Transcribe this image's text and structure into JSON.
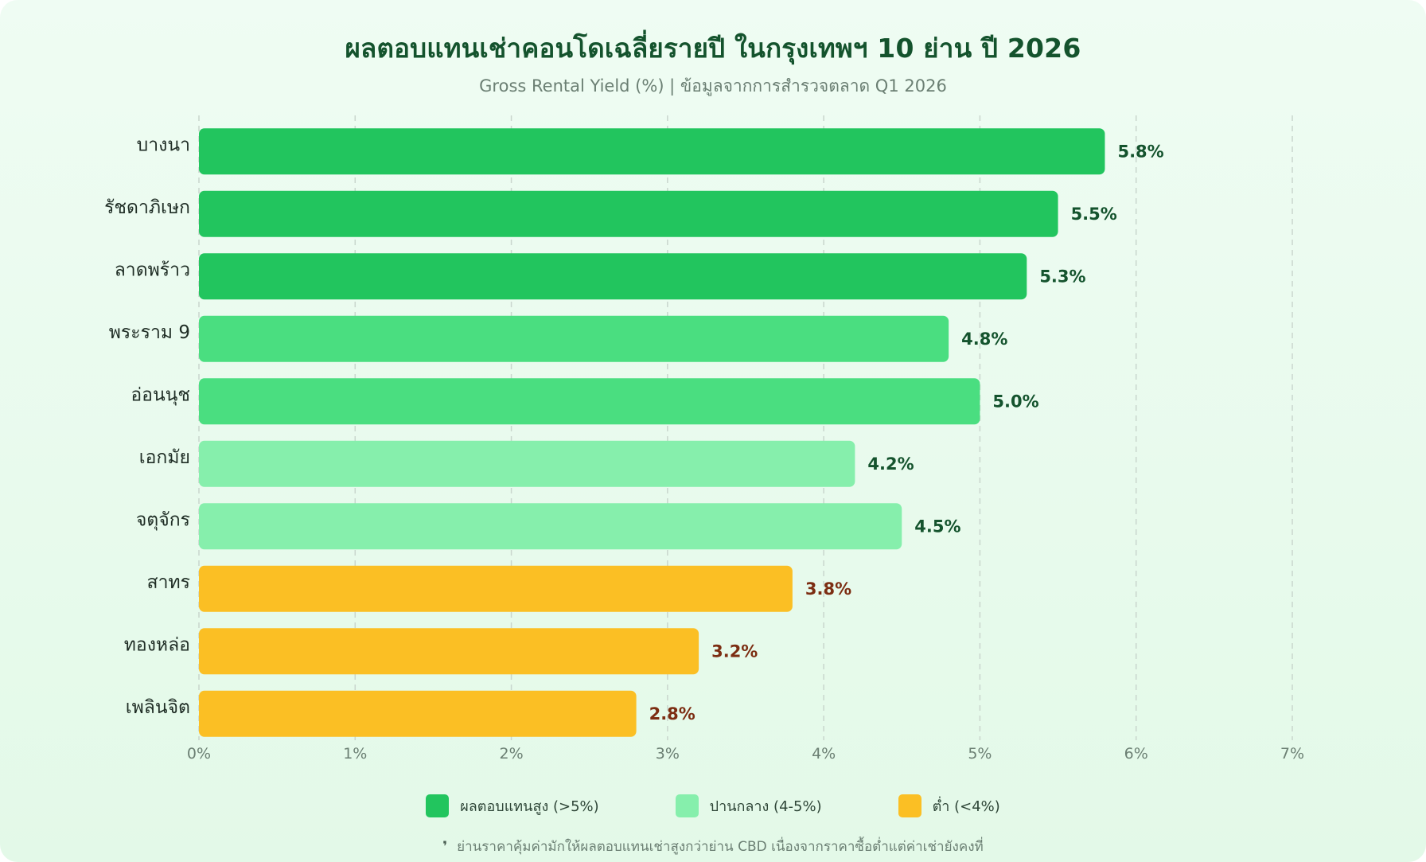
{
  "chart_data": {
    "type": "bar",
    "orientation": "horizontal",
    "title": "ผลตอบแทนเช่าคอนโดเฉลี่ยรายปี ในกรุงเทพฯ 10 ย่าน ปี 2026",
    "subtitle": "Gross Rental Yield (%) | ข้อมูลจากการสำรวจตลาด Q1 2026",
    "categories": [
      "บางนา",
      "รัชดาภิเษก",
      "ลาดพร้าว",
      "พระราม 9",
      "อ่อนนุช",
      "เอกมัย",
      "จตุจักร",
      "สาทร",
      "ทองหล่อ",
      "เพลินจิต"
    ],
    "values": [
      5.8,
      5.5,
      5.3,
      4.8,
      5.0,
      4.2,
      4.5,
      3.8,
      3.2,
      2.8
    ],
    "value_labels": [
      "5.8%",
      "5.5%",
      "5.3%",
      "4.8%",
      "5.0%",
      "4.2%",
      "4.5%",
      "3.8%",
      "3.2%",
      "2.8%"
    ],
    "tiers": [
      "high",
      "high",
      "high",
      "mid",
      "mid",
      "low-mid",
      "low-mid",
      "low",
      "low",
      "low"
    ],
    "xlim": [
      0,
      7
    ],
    "x_ticks": [
      "0%",
      "1%",
      "2%",
      "3%",
      "4%",
      "5%",
      "6%",
      "7%"
    ],
    "grid": "vertical dashed",
    "legend_position": "bottom",
    "legend": [
      {
        "label": "ผลตอบแทนสูง (>5%)",
        "color": "#22c55e"
      },
      {
        "label": "ปานกลาง (4-5%)",
        "color": "#86efac"
      },
      {
        "label": "ต่ำ (<4%)",
        "color": "#fbbf24"
      }
    ],
    "colors": {
      "high": "#22c55e",
      "mid": "#4ade80",
      "low-mid": "#86efac",
      "low": "#fbbf24",
      "label_green": "#14532d",
      "label_brown": "#7c2d12"
    }
  },
  "footnote": {
    "icon": "comma-icon",
    "glyph": "❜",
    "text": "ย่านราคาคุ้มค่ามักให้ผลตอบแทนเช่าสูงกว่าย่าน CBD เนื่องจากราคาซื้อต่ำแต่ค่าเช่ายังคงที่"
  }
}
